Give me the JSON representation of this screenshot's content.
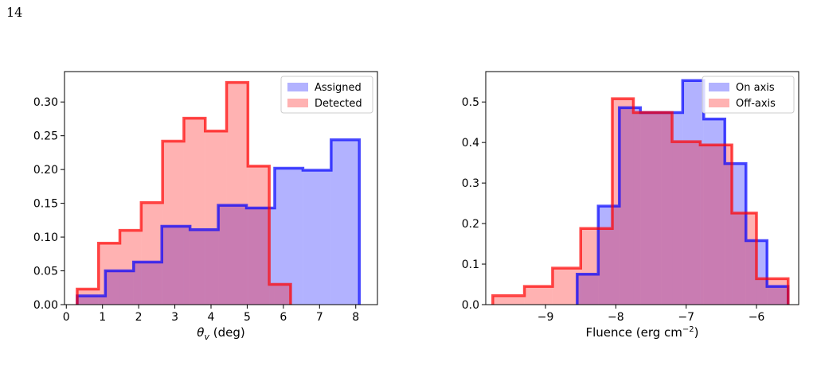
{
  "page": {
    "page_number": "14"
  },
  "chart_data": [
    {
      "type": "histogram",
      "xlabel_symbol": "θ",
      "xlabel_sub": "v",
      "xlabel_unit": " (deg)",
      "xlim": [
        -0.05,
        8.6
      ],
      "ylim": [
        0,
        0.345
      ],
      "xticks": [
        0,
        1,
        2,
        3,
        4,
        5,
        6,
        7,
        8
      ],
      "xtick_labels": [
        "0",
        "1",
        "2",
        "3",
        "4",
        "5",
        "6",
        "7",
        "8"
      ],
      "yticks": [
        0.0,
        0.05,
        0.1,
        0.15,
        0.2,
        0.25,
        0.3
      ],
      "ytick_labels": [
        "0.00",
        "0.05",
        "0.10",
        "0.15",
        "0.20",
        "0.25",
        "0.30"
      ],
      "legend_position": "top-right",
      "series": [
        {
          "name": "Assigned",
          "color": "#0000ff",
          "edges": [
            0.3,
            1.08,
            1.86,
            2.64,
            3.42,
            4.2,
            4.98,
            5.76,
            6.54,
            7.32,
            8.1
          ],
          "values": [
            0.013,
            0.05,
            0.063,
            0.116,
            0.111,
            0.147,
            0.143,
            0.202,
            0.199,
            0.244
          ]
        },
        {
          "name": "Detected",
          "color": "#ff0000",
          "edges": [
            0.3,
            0.89,
            1.48,
            2.07,
            2.66,
            3.25,
            3.84,
            4.43,
            5.02,
            5.61,
            6.2
          ],
          "values": [
            0.023,
            0.091,
            0.11,
            0.151,
            0.242,
            0.276,
            0.257,
            0.329,
            0.205,
            0.03
          ]
        }
      ]
    },
    {
      "type": "histogram",
      "xlabel_text": "Fluence (erg cm",
      "xlabel_sup": "−2",
      "xlabel_close": ")",
      "xlim": [
        -9.85,
        -5.4
      ],
      "ylim": [
        0,
        0.575
      ],
      "xticks": [
        -9,
        -8,
        -7,
        -6
      ],
      "xtick_labels": [
        "−9",
        "−8",
        "−7",
        "−6"
      ],
      "yticks": [
        0.0,
        0.1,
        0.2,
        0.3,
        0.4,
        0.5
      ],
      "ytick_labels": [
        "0.0",
        "0.1",
        "0.2",
        "0.3",
        "0.4",
        "0.5"
      ],
      "legend_position": "top-right",
      "series": [
        {
          "name": "On axis",
          "color": "#0000ff",
          "edges": [
            -8.55,
            -8.25,
            -7.95,
            -7.65,
            -7.35,
            -7.05,
            -6.75,
            -6.45,
            -6.15,
            -5.85,
            -5.55
          ],
          "values": [
            0.075,
            0.243,
            0.486,
            0.474,
            0.474,
            0.553,
            0.458,
            0.348,
            0.158,
            0.045
          ]
        },
        {
          "name": "Off-axis",
          "color": "#ff0000",
          "edges": [
            -9.75,
            -9.3,
            -8.9,
            -8.5,
            -8.05,
            -7.75,
            -7.2,
            -6.8,
            -6.35,
            -6.0,
            -5.55
          ],
          "values": [
            0.022,
            0.045,
            0.09,
            0.188,
            0.508,
            0.474,
            0.402,
            0.394,
            0.226,
            0.064
          ]
        }
      ]
    }
  ]
}
